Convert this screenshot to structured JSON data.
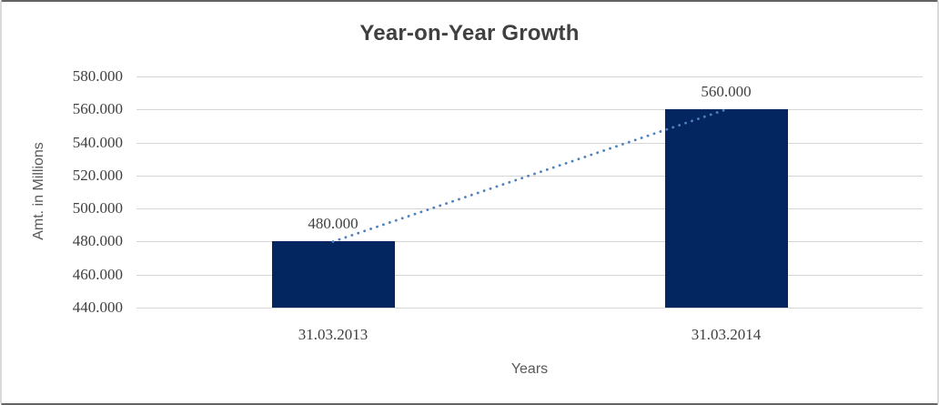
{
  "chart_data": {
    "type": "bar",
    "title": "Year-on-Year Growth",
    "xlabel": "Years",
    "ylabel": "Amt. in Millions",
    "categories": [
      "31.03.2013",
      "31.03.2014"
    ],
    "values": [
      480,
      560
    ],
    "value_labels": [
      "480.000",
      "560.000"
    ],
    "ylim": [
      440,
      580
    ],
    "y_tick_step": 20,
    "y_tick_labels": [
      "580.000",
      "560.000",
      "540.000",
      "520.000",
      "500.000",
      "480.000",
      "460.000",
      "440.000"
    ],
    "grid": true,
    "legend": "none",
    "trendline": {
      "type": "linear",
      "style": "dotted",
      "connects": [
        "480.000",
        "560.000"
      ]
    },
    "colors": {
      "bar": "#032560",
      "trendline": "#4E81BD",
      "gridline": "#D6D6D6",
      "title_text": "#404040",
      "axis_title_text": "#595959",
      "label_text": "#404040"
    }
  }
}
